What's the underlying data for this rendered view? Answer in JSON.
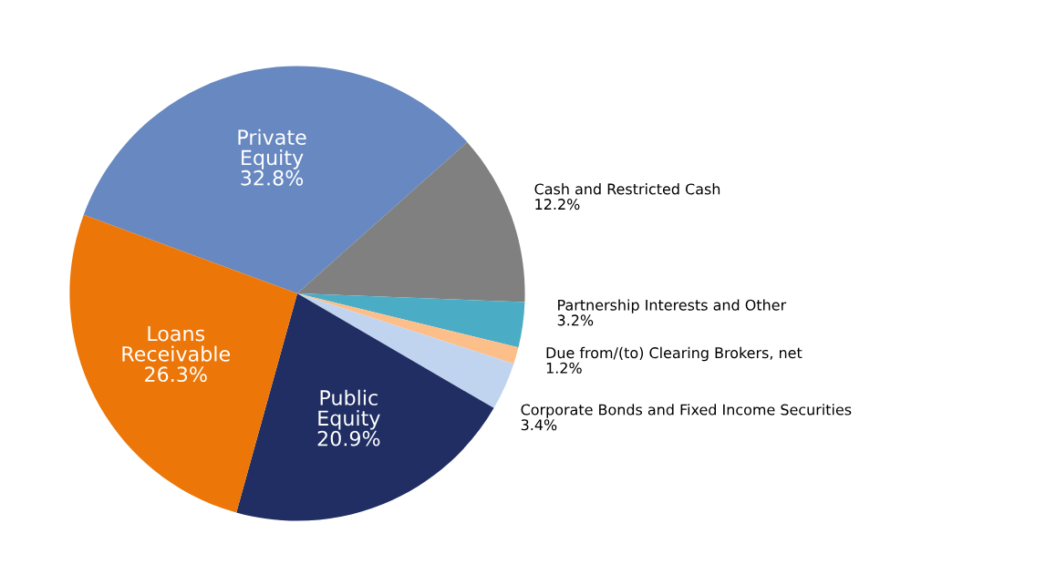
{
  "chart_data": {
    "type": "pie",
    "categories": [
      "Private\nEquity",
      "Cash and Restricted Cash",
      "Partnership Interests and Other",
      "Due from/(to) Clearing Brokers, net",
      "Corporate Bonds and Fixed Income Securities",
      "Public\nEquity",
      "Loans\nReceivable"
    ],
    "values": [
      32.8,
      12.2,
      3.2,
      1.2,
      3.4,
      20.9,
      26.3
    ],
    "value_labels": [
      "32.8%",
      "12.2%",
      "3.2%",
      "1.2%",
      "3.4%",
      "20.9%",
      "26.3%"
    ],
    "colors": [
      "#6788c0",
      "#808080",
      "#4bacc6",
      "#fdbf8a",
      "#c0d4f0",
      "#202e63",
      "#ec7608"
    ],
    "legend": false
  }
}
